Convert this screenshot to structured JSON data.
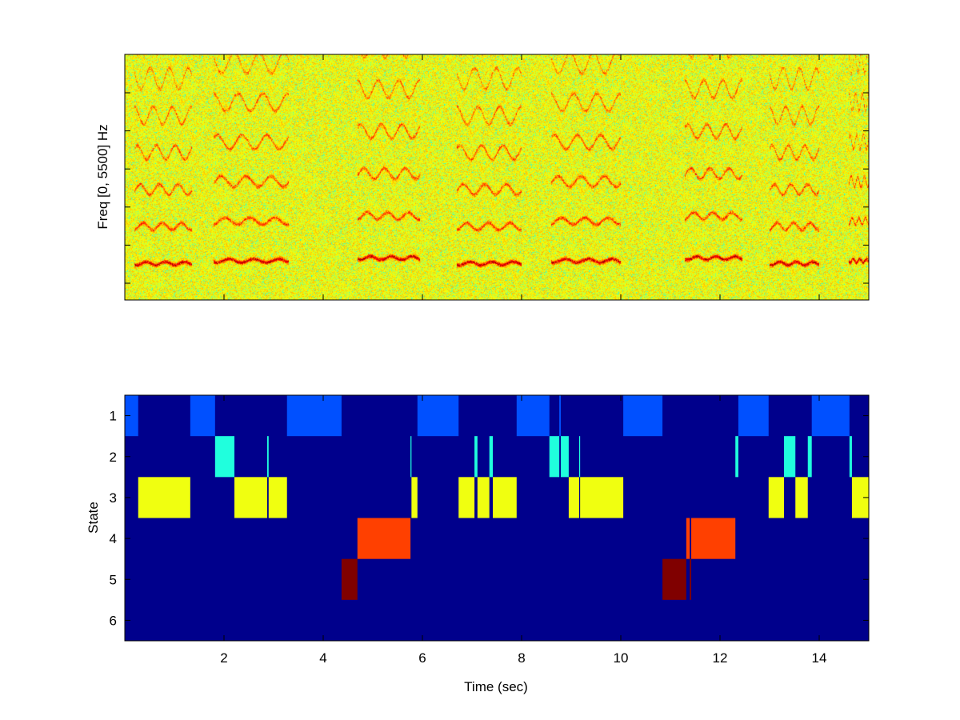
{
  "chart_data": [
    {
      "type": "heatmap",
      "title": "",
      "xlabel": "",
      "ylabel": "Freq [0, 5500] Hz",
      "xlim": [
        0,
        15
      ],
      "ylim": [
        0,
        5500
      ],
      "colormap": "jet",
      "vocal_bursts_sec": [
        [
          0.2,
          1.35
        ],
        [
          1.8,
          3.3
        ],
        [
          4.7,
          5.95
        ],
        [
          6.7,
          8.0
        ],
        [
          8.6,
          10.0
        ],
        [
          11.3,
          12.45
        ],
        [
          13.0,
          14.0
        ],
        [
          14.6,
          15.0
        ]
      ]
    },
    {
      "type": "heatmap",
      "title": "",
      "xlabel": "Time (sec)",
      "ylabel": "State",
      "xlim": [
        0,
        15
      ],
      "ylim": [
        0.5,
        6.5
      ],
      "xticks": [
        "2",
        "4",
        "6",
        "8",
        "10",
        "12",
        "14"
      ],
      "yticks": [
        "1",
        "2",
        "3",
        "4",
        "5",
        "6"
      ],
      "background_color": "#00008c",
      "state_colors": {
        "1": "#0050ff",
        "2": "#20ffdd",
        "3": "#f0ff10",
        "4": "#ff4000",
        "5": "#800000"
      },
      "segments": [
        {
          "state": 1,
          "start": 0.0,
          "end": 0.27
        },
        {
          "state": 3,
          "start": 0.27,
          "end": 1.32
        },
        {
          "state": 1,
          "start": 1.32,
          "end": 1.82
        },
        {
          "state": 2,
          "start": 1.82,
          "end": 2.21
        },
        {
          "state": 3,
          "start": 2.21,
          "end": 2.87
        },
        {
          "state": 2,
          "start": 2.87,
          "end": 2.9
        },
        {
          "state": 3,
          "start": 2.9,
          "end": 3.27
        },
        {
          "state": 1,
          "start": 3.27,
          "end": 4.37
        },
        {
          "state": 5,
          "start": 4.37,
          "end": 4.69
        },
        {
          "state": 4,
          "start": 4.69,
          "end": 5.76
        },
        {
          "state": 2,
          "start": 5.76,
          "end": 5.78
        },
        {
          "state": 3,
          "start": 5.78,
          "end": 5.9
        },
        {
          "state": 1,
          "start": 5.9,
          "end": 6.73
        },
        {
          "state": 3,
          "start": 6.73,
          "end": 7.05
        },
        {
          "state": 2,
          "start": 7.05,
          "end": 7.11
        },
        {
          "state": 3,
          "start": 7.11,
          "end": 7.35
        },
        {
          "state": 2,
          "start": 7.35,
          "end": 7.42
        },
        {
          "state": 3,
          "start": 7.42,
          "end": 7.9
        },
        {
          "state": 1,
          "start": 7.9,
          "end": 8.56
        },
        {
          "state": 2,
          "start": 8.56,
          "end": 8.76
        },
        {
          "state": 1,
          "start": 8.76,
          "end": 8.79
        },
        {
          "state": 2,
          "start": 8.79,
          "end": 8.95
        },
        {
          "state": 3,
          "start": 8.95,
          "end": 9.16
        },
        {
          "state": 2,
          "start": 9.16,
          "end": 9.18
        },
        {
          "state": 3,
          "start": 9.18,
          "end": 10.05
        },
        {
          "state": 1,
          "start": 10.05,
          "end": 10.84
        },
        {
          "state": 5,
          "start": 10.84,
          "end": 11.32
        },
        {
          "state": 4,
          "start": 11.32,
          "end": 11.39
        },
        {
          "state": 5,
          "start": 11.39,
          "end": 11.42
        },
        {
          "state": 4,
          "start": 11.42,
          "end": 12.31
        },
        {
          "state": 2,
          "start": 12.31,
          "end": 12.37
        },
        {
          "state": 1,
          "start": 12.37,
          "end": 12.98
        },
        {
          "state": 3,
          "start": 12.98,
          "end": 13.29
        },
        {
          "state": 2,
          "start": 13.29,
          "end": 13.52
        },
        {
          "state": 3,
          "start": 13.52,
          "end": 13.77
        },
        {
          "state": 2,
          "start": 13.77,
          "end": 13.85
        },
        {
          "state": 1,
          "start": 13.85,
          "end": 14.61
        },
        {
          "state": 2,
          "start": 14.61,
          "end": 14.66
        },
        {
          "state": 3,
          "start": 14.66,
          "end": 15.0
        }
      ]
    }
  ]
}
